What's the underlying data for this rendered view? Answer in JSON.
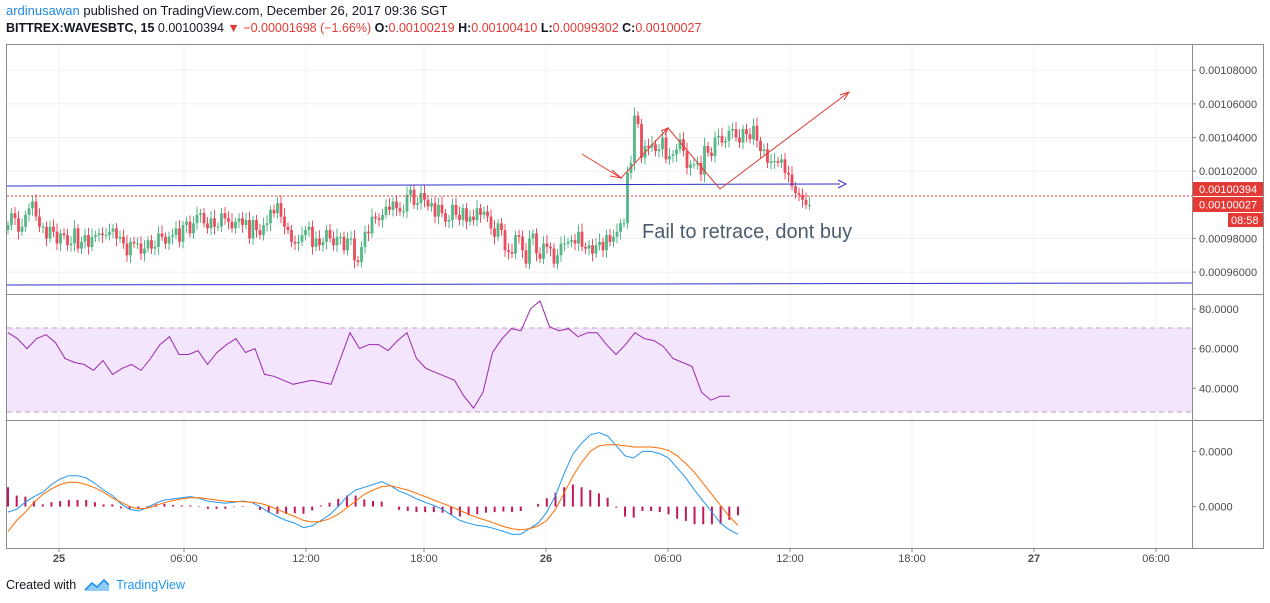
{
  "header": {
    "user": "ardinusawan",
    "published_text": "published on TradingView.com, December 26, 2017 09:36 SGT",
    "symbol": "BITTREX:WAVESBTC, 15",
    "last": "0.00100394",
    "change_arrow": "▼",
    "change": "−0.00001698 (−1.66%)",
    "o_label": "O:",
    "o": "0.00100219",
    "h_label": "H:",
    "h": "0.00100410",
    "l_label": "L:",
    "l": "0.00099302",
    "c_label": "C:",
    "c": "0.00100027"
  },
  "annotation": "Fail to retrace, dont buy",
  "footer": {
    "created": "Created with",
    "brand": "TradingView"
  },
  "colors": {
    "up": "#53b987",
    "down": "#eb4d5c",
    "trendline": "#3030d0",
    "arrow": "#e53935",
    "rsi": "#9c27b0",
    "rsi_band": "#f3e5fb",
    "macd": "#2196f3",
    "signal": "#ff6d00",
    "hist": "#c2185b"
  },
  "chart_data": [
    {
      "type": "candlestick",
      "x_ticks": [
        "25",
        "06:00",
        "12:00",
        "18:00",
        "26",
        "06:00",
        "12:00",
        "18:00",
        "27",
        "06:00"
      ],
      "y_ticks": [
        "0.00108000",
        "0.00106000",
        "0.00104000",
        "0.00102000",
        "0.00098000",
        "0.00096000"
      ],
      "ylim": [
        0.000947,
        0.001095
      ],
      "price_labels": {
        "last": "0.00100394",
        "close": "0.00100027",
        "timer": "08:58"
      },
      "close": [
        0.000988,
        0.000995,
        0.000992,
        0.000984,
        0.000987,
        0.000994,
        0.000998,
        0.001002,
        0.000993,
        0.000987,
        0.000987,
        0.00098,
        0.000987,
        0.000984,
        0.000977,
        0.000983,
        0.000982,
        0.000976,
        0.000977,
        0.000986,
        0.000974,
        0.000978,
        0.000982,
        0.000975,
        0.000981,
        0.000982,
        0.000983,
        0.000982,
        0.000982,
        0.000984,
        0.000986,
        0.00098,
        0.000981,
        0.000977,
        0.00097,
        0.000978,
        0.000977,
        0.000977,
        0.000971,
        0.000974,
        0.000979,
        0.000974,
        0.000975,
        0.000983,
        0.000981,
        0.000977,
        0.000981,
        0.000982,
        0.000986,
        0.000978,
        0.000988,
        0.00099,
        0.000983,
        0.000989,
        0.000994,
        0.000995,
        0.000989,
        0.000986,
        0.000992,
        0.000987,
        0.000987,
        0.000995,
        0.000992,
        0.00099,
        0.000986,
        0.00099,
        0.000992,
        0.000988,
        0.000991,
        0.00098,
        0.000991,
        0.000985,
        0.000982,
        0.000988,
        0.000989,
        0.000997,
        0.000995,
        0.001001,
        0.000993,
        0.000987,
        0.000985,
        0.000978,
        0.000977,
        0.000978,
        0.000982,
        0.000985,
        0.000987,
        0.000975,
        0.00098,
        0.000976,
        0.000978,
        0.000985,
        0.00098,
        0.000976,
        0.000981,
        0.000981,
        0.000973,
        0.00098,
        0.00098,
        0.000967,
        0.000966,
        0.000975,
        0.000984,
        0.000983,
        0.000993,
        0.000992,
        0.000991,
        0.000994,
        0.000999,
        0.000997,
        0.001002,
        0.000998,
        0.000996,
        0.000996,
        0.001006,
        0.001009,
        0.001,
        0.001001,
        0.001007,
        0.001003,
        0.000999,
        0.001001,
        0.000993,
        0.001,
        0.000995,
        0.00099,
        0.000991,
        0.001,
        0.000994,
        0.000991,
        0.000998,
        0.00099,
        0.000993,
        0.000991,
        0.000998,
        0.000994,
        0.000996,
        0.000993,
        0.000986,
        0.000981,
        0.000989,
        0.000985,
        0.000973,
        0.000972,
        0.000971,
        0.000982,
        0.000981,
        0.000973,
        0.000965,
        0.00098,
        0.000983,
        0.000971,
        0.000968,
        0.000977,
        0.000975,
        0.000974,
        0.000965,
        0.00097,
        0.000977,
        0.000977,
        0.000978,
        0.000979,
        0.000977,
        0.000984,
        0.000975,
        0.000974,
        0.000976,
        0.000971,
        0.000976,
        0.000978,
        0.000973,
        0.000982,
        0.000978,
        0.000981,
        0.000984,
        0.000989,
        0.000989,
        0.001019,
        0.001025,
        0.001053,
        0.001048,
        0.001028,
        0.001035,
        0.001034,
        0.001036,
        0.001032,
        0.001033,
        0.00104,
        0.001027,
        0.001029,
        0.00103,
        0.001033,
        0.001039,
        0.001032,
        0.001022,
        0.001024,
        0.001024,
        0.001025,
        0.001018,
        0.001035,
        0.001031,
        0.001029,
        0.00104,
        0.001041,
        0.001037,
        0.001038,
        0.001044,
        0.001045,
        0.00104,
        0.001037,
        0.001045,
        0.001042,
        0.001039,
        0.001047,
        0.001038,
        0.001032,
        0.001033,
        0.001025,
        0.001026,
        0.001026,
        0.001025,
        0.001027,
        0.001019,
        0.001018,
        0.001011,
        0.001007,
        0.001006,
        0.001003,
        0.001,
        0.001
      ]
    },
    {
      "type": "line",
      "name": "RSI",
      "y_ticks": [
        "80.0000",
        "60.0000",
        "40.0000"
      ],
      "ylim": [
        24,
        87
      ],
      "band": [
        30,
        70
      ],
      "values": [
        68,
        65,
        60,
        65,
        67,
        63,
        55,
        53,
        52,
        49,
        54,
        47,
        50,
        52,
        49,
        55,
        62,
        66,
        57,
        57,
        59,
        52,
        58,
        62,
        65,
        58,
        60,
        47,
        46,
        44,
        42,
        43,
        44,
        43,
        42,
        55,
        68,
        60,
        62,
        62,
        59,
        64,
        68,
        55,
        50,
        48,
        46,
        44,
        36,
        30,
        38,
        58,
        65,
        70,
        69,
        80,
        84,
        71,
        69,
        70,
        66,
        68,
        68,
        62,
        57,
        62,
        68,
        65,
        64,
        61,
        55,
        53,
        51,
        38,
        34,
        36,
        36
      ]
    },
    {
      "type": "line",
      "name": "MACD",
      "y_ticks": [
        "0.0000",
        "0.0000"
      ],
      "ylim": [
        -75,
        155
      ],
      "macd": [
        -10,
        -5,
        8,
        18,
        26,
        40,
        50,
        56,
        56,
        52,
        42,
        30,
        20,
        5,
        -5,
        -8,
        -2,
        6,
        12,
        14,
        16,
        18,
        15,
        10,
        8,
        6,
        8,
        10,
        8,
        0,
        -10,
        -18,
        -25,
        -30,
        -38,
        -35,
        -25,
        -15,
        0,
        18,
        30,
        35,
        40,
        45,
        38,
        28,
        22,
        14,
        8,
        2,
        -5,
        -15,
        -25,
        -30,
        -34,
        -36,
        -40,
        -45,
        -50,
        -50,
        -40,
        -30,
        -10,
        20,
        60,
        95,
        115,
        130,
        134,
        128,
        110,
        92,
        88,
        100,
        100,
        96,
        88,
        70,
        52,
        30,
        10,
        -10,
        -30,
        -42,
        -50
      ],
      "signal": [
        -45,
        -25,
        -10,
        8,
        22,
        32,
        40,
        44,
        44,
        40,
        34,
        26,
        16,
        8,
        0,
        -4,
        -3,
        2,
        7,
        11,
        14,
        16,
        16,
        14,
        12,
        10,
        9,
        9,
        8,
        6,
        1,
        -5,
        -12,
        -18,
        -25,
        -28,
        -27,
        -22,
        -14,
        -2,
        10,
        22,
        30,
        36,
        38,
        34,
        30,
        24,
        18,
        12,
        6,
        0,
        -7,
        -14,
        -20,
        -25,
        -30,
        -36,
        -40,
        -42,
        -40,
        -35,
        -25,
        -5,
        25,
        55,
        80,
        100,
        110,
        112,
        112,
        110,
        108,
        108,
        108,
        106,
        102,
        92,
        78,
        62,
        42,
        22,
        2,
        -18,
        -34
      ],
      "histogram": [
        35,
        20,
        18,
        10,
        4,
        8,
        10,
        12,
        12,
        12,
        8,
        4,
        4,
        -3,
        -5,
        -4,
        1,
        4,
        5,
        3,
        2,
        2,
        -1,
        -4,
        -4,
        -4,
        -1,
        1,
        0,
        -6,
        -11,
        -13,
        -13,
        -12,
        -13,
        -7,
        2,
        7,
        14,
        20,
        20,
        13,
        10,
        9,
        0,
        -6,
        -8,
        -10,
        -10,
        -10,
        -11,
        -15,
        -18,
        -16,
        -14,
        -11,
        -10,
        -9,
        -10,
        -8,
        0,
        5,
        15,
        25,
        35,
        40,
        35,
        30,
        24,
        16,
        -2,
        -18,
        -20,
        -8,
        -8,
        -10,
        -14,
        -22,
        -26,
        -32,
        -32,
        -32,
        -32,
        -24,
        -16
      ]
    }
  ]
}
